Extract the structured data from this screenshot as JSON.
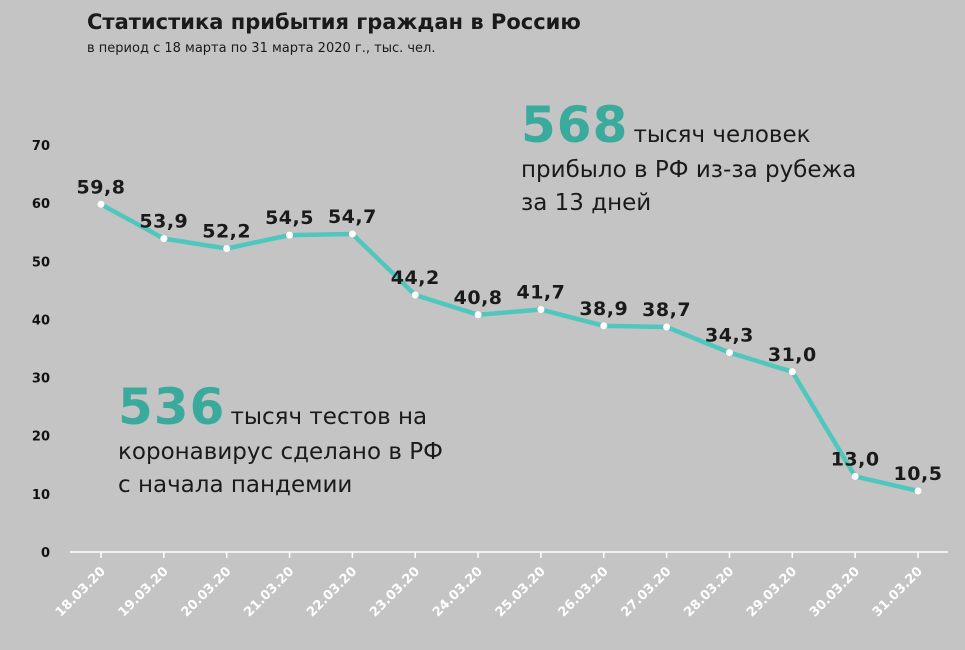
{
  "title": "Статистика прибытия граждан в Россию",
  "subtitle": "в период с 18 марта по 31 марта 2020 г., тыс. чел.",
  "callouts": {
    "arrivals": {
      "number": "568",
      "line1": "тысяч человек",
      "line2": "прибыло в РФ из-за рубежа",
      "line3": "за 13 дней"
    },
    "tests": {
      "number": "536",
      "line1": "тысяч тестов на",
      "line2": "коронавирус сделано в РФ",
      "line3": "с начала пандемии"
    }
  },
  "colors": {
    "line": "#4fc7bc",
    "accent": "#3aaa9c",
    "background": "#c4c4c4"
  },
  "chart_data": {
    "type": "line",
    "title": "Статистика прибытия граждан в Россию",
    "subtitle": "в период с 18 марта по 31 марта 2020 г., тыс. чел.",
    "xlabel": "",
    "ylabel": "",
    "ylim": [
      0,
      70
    ],
    "yticks": [
      "0",
      "10",
      "20",
      "30",
      "40",
      "50",
      "60",
      "70"
    ],
    "grid": false,
    "categories": [
      "18.03.20",
      "19.03.20",
      "20.03.20",
      "21.03.20",
      "22.03.20",
      "23.03.20",
      "24.03.20",
      "25.03.20",
      "26.03.20",
      "27.03.20",
      "28.03.20",
      "29.03.20",
      "30.03.20",
      "31.03.20"
    ],
    "values": [
      59.8,
      53.9,
      52.2,
      54.5,
      54.7,
      44.2,
      40.8,
      41.7,
      38.9,
      38.7,
      34.3,
      31.0,
      13.0,
      10.5
    ],
    "data_labels": [
      "59,8",
      "53,9",
      "52,2",
      "54,5",
      "54,7",
      "44,2",
      "40,8",
      "41,7",
      "38,9",
      "38,7",
      "34,3",
      "31,0",
      "13,0",
      "10,5"
    ]
  }
}
